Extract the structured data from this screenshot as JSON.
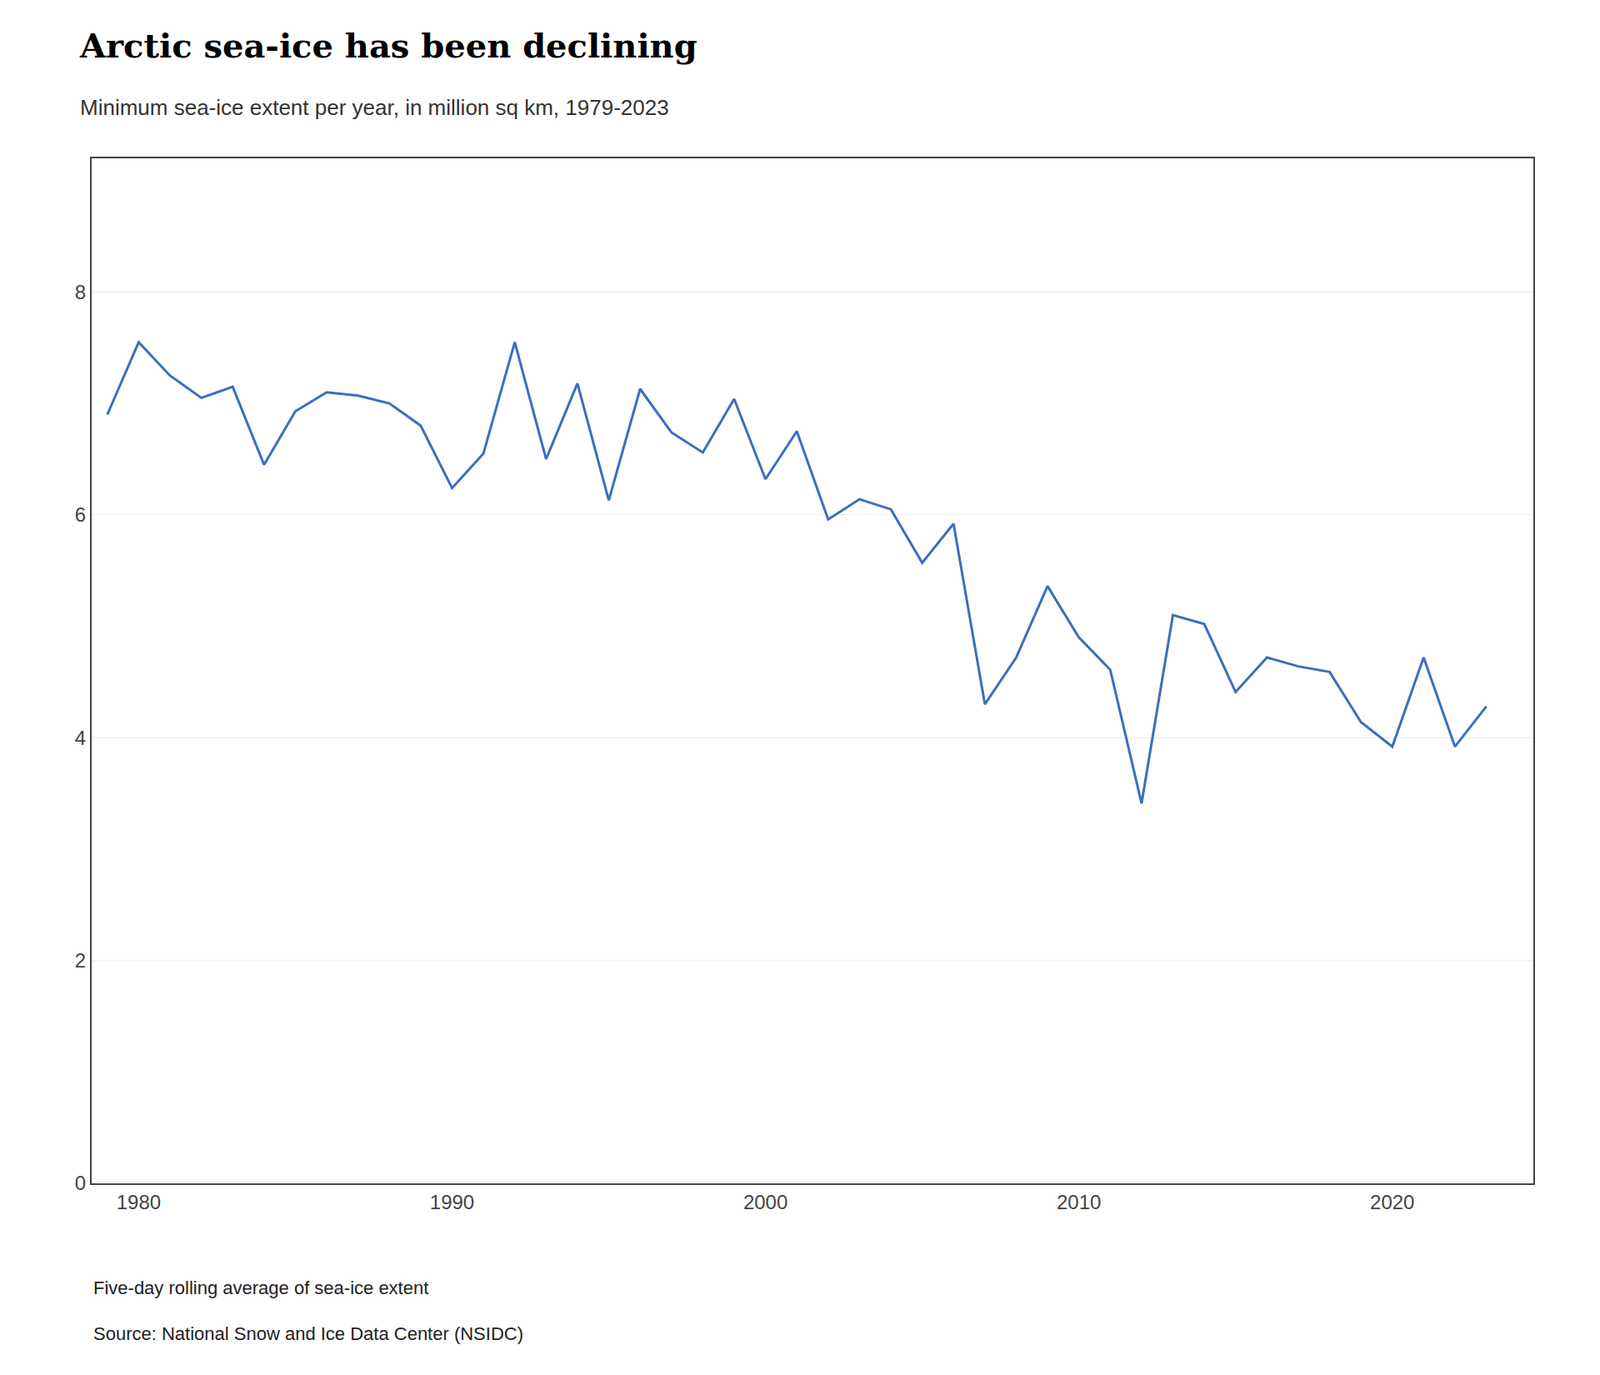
{
  "chart_data": {
    "type": "line",
    "title": "Arctic sea-ice has been declining",
    "subtitle": "Minimum sea-ice extent per year, in million sq km, 1979-2023",
    "annotations": [
      "Five-day rolling average of sea-ice extent",
      "Source: National Snow and Ice Data Center (NSIDC)"
    ],
    "x": [
      1979,
      1980,
      1981,
      1982,
      1983,
      1984,
      1985,
      1986,
      1987,
      1988,
      1989,
      1990,
      1991,
      1992,
      1993,
      1994,
      1995,
      1996,
      1997,
      1998,
      1999,
      2000,
      2001,
      2002,
      2003,
      2004,
      2005,
      2006,
      2007,
      2008,
      2009,
      2010,
      2011,
      2012,
      2013,
      2014,
      2015,
      2016,
      2017,
      2018,
      2019,
      2020,
      2021,
      2022,
      2023
    ],
    "values": [
      6.9,
      7.55,
      7.25,
      7.05,
      7.15,
      6.45,
      6.93,
      7.1,
      7.07,
      7.0,
      6.8,
      6.24,
      6.55,
      7.55,
      6.5,
      7.18,
      6.13,
      7.13,
      6.74,
      6.56,
      7.04,
      6.32,
      6.75,
      5.96,
      6.14,
      6.05,
      5.57,
      5.92,
      4.3,
      4.72,
      5.36,
      4.9,
      4.61,
      3.41,
      5.1,
      5.02,
      4.41,
      4.72,
      4.64,
      4.59,
      4.14,
      3.92,
      4.72,
      3.92,
      4.28
    ],
    "color": "#3a6fbd",
    "xlim": [
      1978.5,
      2024.5
    ],
    "ylim": [
      0,
      9.2
    ],
    "xticks": [
      1980,
      1990,
      2000,
      2010,
      2020
    ],
    "yticks": [
      0,
      2,
      4,
      6,
      8
    ],
    "grid": "y"
  }
}
